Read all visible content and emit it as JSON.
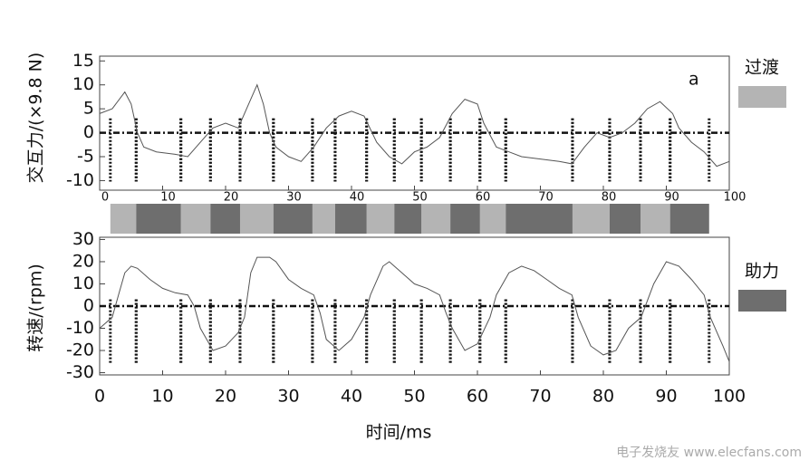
{
  "chart_data": [
    {
      "type": "line",
      "ylabel": "交互力/(×9.8 N)",
      "annotation": "a",
      "x": [
        0,
        2,
        4,
        5,
        6,
        7,
        9,
        12,
        14,
        16,
        18,
        20,
        22,
        24,
        25,
        26,
        27,
        28,
        30,
        32,
        34,
        36,
        38,
        40,
        42,
        44,
        46,
        48,
        50,
        52,
        54,
        56,
        58,
        60,
        61,
        63,
        65,
        67,
        70,
        73,
        75,
        77,
        79,
        81,
        83,
        85,
        87,
        89,
        91,
        92,
        94,
        96,
        98,
        100
      ],
      "series": [
        {
          "color": "#555555",
          "values": [
            4,
            5,
            8.5,
            6,
            0,
            -3,
            -4,
            -4.5,
            -5,
            -2,
            1,
            2,
            1,
            7,
            10,
            6,
            0,
            -3,
            -5,
            -6,
            -3,
            1,
            3.5,
            4.5,
            3.5,
            -2,
            -5,
            -6.5,
            -4,
            -3,
            -1,
            4,
            7,
            6,
            2,
            -3,
            -4,
            -5,
            -5.5,
            -6,
            -6.5,
            -3,
            0,
            -1,
            0,
            2,
            5,
            6.5,
            4,
            1,
            -2,
            -4,
            -7,
            -6
          ]
        }
      ],
      "xlim": [
        0,
        100
      ],
      "xticks": [
        0,
        10,
        20,
        30,
        40,
        50,
        60,
        70,
        80,
        90,
        100
      ],
      "ylim": [
        -12,
        16
      ],
      "yticks": [
        -10,
        -5,
        0,
        5,
        10,
        15
      ]
    },
    {
      "type": "line",
      "ylabel": "转速/(rpm)",
      "xlabel": "时间/ms",
      "x": [
        0,
        2,
        3,
        4,
        5,
        6,
        8,
        10,
        12,
        14,
        15,
        16,
        18,
        20,
        22,
        23,
        24,
        25,
        27,
        28,
        30,
        32,
        34,
        35,
        36,
        38,
        40,
        42,
        43,
        45,
        46,
        48,
        50,
        52,
        54,
        55,
        56,
        58,
        60,
        62,
        63,
        65,
        67,
        69,
        71,
        73,
        75,
        76,
        78,
        80,
        82,
        84,
        86,
        88,
        90,
        92,
        94,
        96,
        97,
        99,
        100
      ],
      "series": [
        {
          "color": "#555555",
          "values": [
            -10,
            -5,
            5,
            15,
            18,
            17,
            12,
            8,
            6,
            5,
            0,
            -10,
            -20,
            -18,
            -12,
            -5,
            15,
            22,
            22,
            20,
            12,
            8,
            5,
            -3,
            -15,
            -20,
            -15,
            -5,
            5,
            18,
            20,
            15,
            10,
            8,
            5,
            -3,
            -10,
            -20,
            -17,
            -5,
            5,
            15,
            18,
            16,
            12,
            8,
            5,
            -5,
            -18,
            -22,
            -20,
            -10,
            -5,
            10,
            20,
            18,
            12,
            5,
            -5,
            -18,
            -25
          ]
        }
      ],
      "xlim": [
        0,
        100
      ],
      "xticks": [
        0,
        10,
        20,
        30,
        40,
        50,
        60,
        70,
        80,
        90,
        100
      ],
      "ylim": [
        -31,
        31
      ],
      "yticks": [
        -30,
        -20,
        -10,
        0,
        10,
        20,
        30
      ]
    }
  ],
  "phases": {
    "series": [
      {
        "name": "过渡",
        "color": "#b4b4b4",
        "intervals": [
          [
            1.7,
            5.8
          ],
          [
            12.9,
            17.6
          ],
          [
            22.3,
            27.6
          ],
          [
            33.8,
            37.4
          ],
          [
            42.4,
            46.8
          ],
          [
            51.1,
            55.7
          ],
          [
            60.4,
            64.5
          ],
          [
            75.1,
            81.0
          ],
          [
            85.9,
            90.6
          ]
        ]
      },
      {
        "name": "助力",
        "color": "#6e6e6e",
        "intervals": [
          [
            5.8,
            12.9
          ],
          [
            17.6,
            22.3
          ],
          [
            27.6,
            33.8
          ],
          [
            37.4,
            42.4
          ],
          [
            46.8,
            51.1
          ],
          [
            55.7,
            60.4
          ],
          [
            64.5,
            75.1
          ],
          [
            81.0,
            85.9
          ],
          [
            90.6,
            96.8
          ]
        ]
      }
    ]
  },
  "watermark": "电子发烧友 www.elecfans.com"
}
